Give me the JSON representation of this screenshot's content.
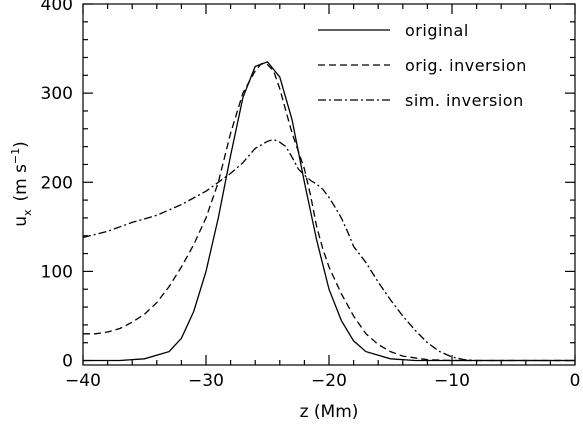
{
  "chart_data": {
    "type": "line",
    "xlabel": "z (Mm)",
    "ylabel": "u_x (m s^-1)",
    "ylabel_parts": {
      "u": "u",
      "sub": "x",
      "unit_open": "(m s",
      "sup": "−1",
      "unit_close": ")"
    },
    "xlim": [
      -40,
      0
    ],
    "ylim": [
      -5,
      400
    ],
    "x_ticks": [
      -40,
      -30,
      -20,
      -10,
      0
    ],
    "x_tick_labels": [
      "−40",
      "−30",
      "−20",
      "−10",
      "0"
    ],
    "y_ticks": [
      0,
      100,
      200,
      300,
      400
    ],
    "y_tick_labels": [
      "0",
      "100",
      "200",
      "300",
      "400"
    ],
    "grid": false,
    "legend_position": "top-right",
    "series": [
      {
        "name": "original",
        "dash": "solid",
        "x": [
          -40,
          -37,
          -35,
          -33,
          -32,
          -31,
          -30,
          -29,
          -28,
          -27,
          -26,
          -25,
          -24,
          -23,
          -22,
          -21,
          -20,
          -19,
          -18,
          -17,
          -15,
          -13,
          -10,
          0
        ],
        "y": [
          0,
          0,
          2,
          10,
          25,
          55,
          100,
          160,
          230,
          295,
          330,
          335,
          318,
          270,
          200,
          135,
          80,
          45,
          22,
          10,
          2,
          0,
          0,
          0
        ]
      },
      {
        "name": "orig. inversion",
        "dash": "dashed",
        "x": [
          -40,
          -39,
          -38,
          -37,
          -36,
          -35,
          -34,
          -33,
          -32,
          -31,
          -30,
          -29,
          -28,
          -27,
          -26,
          -25.5,
          -25,
          -24.5,
          -24,
          -23.5,
          -23,
          -22,
          -21.5,
          -21,
          -20.5,
          -20,
          -19,
          -18,
          -17,
          -16,
          -15,
          -14,
          -12,
          -10,
          0
        ],
        "y": [
          30,
          30,
          32,
          36,
          43,
          52,
          65,
          83,
          105,
          130,
          160,
          200,
          255,
          300,
          325,
          333,
          332,
          325,
          305,
          280,
          255,
          215,
          185,
          150,
          125,
          105,
          75,
          50,
          30,
          18,
          10,
          5,
          1,
          0,
          0
        ]
      },
      {
        "name": "sim. inversion",
        "dash": "dashdot",
        "x": [
          -40,
          -38,
          -36,
          -34,
          -32,
          -30,
          -29,
          -28,
          -27,
          -26,
          -25,
          -24.5,
          -24,
          -23.5,
          -23,
          -22.5,
          -22,
          -21.5,
          -21,
          -20.5,
          -20,
          -19.5,
          -19,
          -18.5,
          -18,
          -17,
          -16,
          -15,
          -14,
          -13,
          -12,
          -11,
          -10,
          -9,
          -8,
          -7,
          -5,
          0
        ],
        "y": [
          138,
          145,
          155,
          163,
          175,
          190,
          200,
          210,
          222,
          238,
          246,
          248,
          245,
          240,
          228,
          215,
          208,
          202,
          198,
          192,
          183,
          172,
          160,
          145,
          128,
          110,
          88,
          68,
          50,
          34,
          20,
          10,
          4,
          1,
          0,
          0,
          0,
          0
        ]
      }
    ]
  }
}
